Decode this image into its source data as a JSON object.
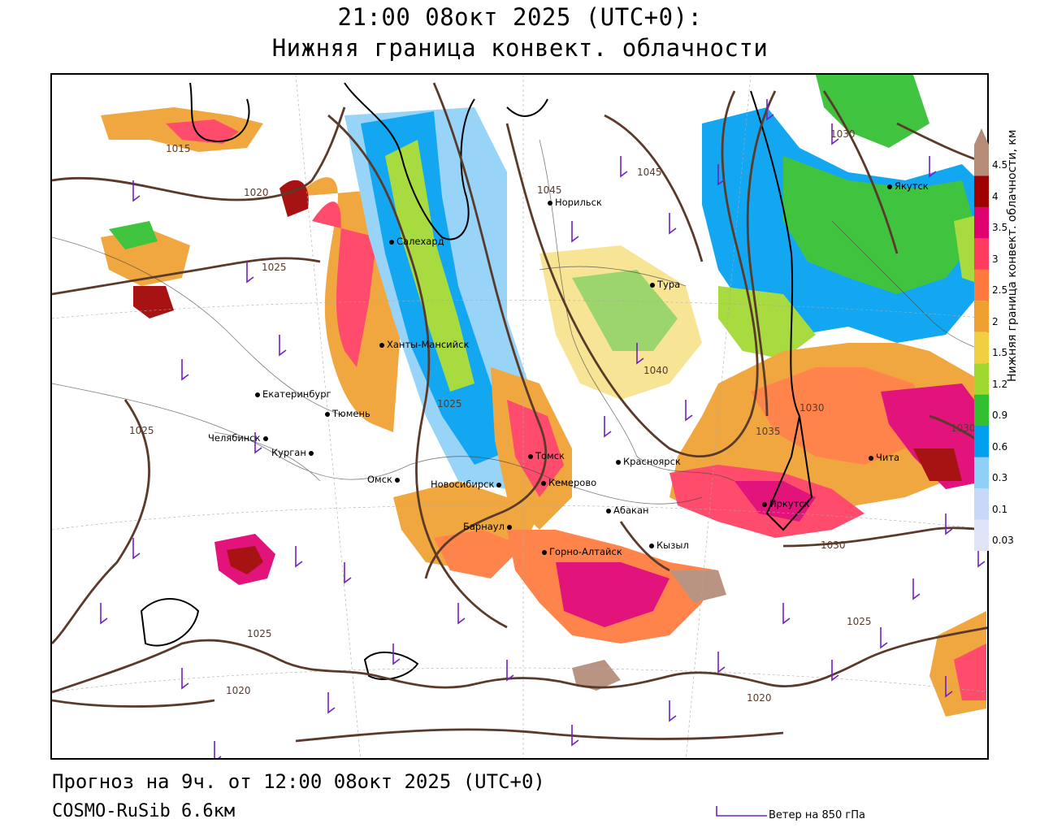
{
  "header": {
    "title_line1": "21:00 08окт 2025 (UTC+0):",
    "title_line2": "Нижняя граница конвект. облачности"
  },
  "footer": {
    "forecast_text": "Прогноз на 9ч. от 12:00 08окт 2025 (UTC+0)",
    "model_text": "COSMO-RuSib 6.6км",
    "wind_legend_label": "Ветер на 850 гПа"
  },
  "colorbar": {
    "title": "Нижняя граница конвект. облачности, км",
    "levels": [
      {
        "label": "4.5",
        "color": "#b48c78"
      },
      {
        "label": "4",
        "color": "#a00000"
      },
      {
        "label": "3.5",
        "color": "#e00070"
      },
      {
        "label": "3",
        "color": "#ff3c60"
      },
      {
        "label": "2.5",
        "color": "#ff7a3c"
      },
      {
        "label": "2",
        "color": "#f0a030"
      },
      {
        "label": "1.5",
        "color": "#f0d040"
      },
      {
        "label": "1.2",
        "color": "#a0d830"
      },
      {
        "label": "0.9",
        "color": "#30c030"
      },
      {
        "label": "0.6",
        "color": "#00a0f0"
      },
      {
        "label": "0.3",
        "color": "#90d0f8"
      },
      {
        "label": "0.1",
        "color": "#c8d8f8"
      },
      {
        "label": "0.03",
        "color": "#e0e4f8"
      }
    ]
  },
  "cities": [
    {
      "name": "Норильск"
    },
    {
      "name": "Якутск"
    },
    {
      "name": "Салехард"
    },
    {
      "name": "Тура"
    },
    {
      "name": "Ханты-Мансийск"
    },
    {
      "name": "Екатеринбург"
    },
    {
      "name": "Тюмень"
    },
    {
      "name": "Челябинск"
    },
    {
      "name": "Курган"
    },
    {
      "name": "Омск"
    },
    {
      "name": "Томск"
    },
    {
      "name": "Новосибирск"
    },
    {
      "name": "Кемерово"
    },
    {
      "name": "Красноярск"
    },
    {
      "name": "Абакан"
    },
    {
      "name": "Барнаул"
    },
    {
      "name": "Горно-Алтайск"
    },
    {
      "name": "Кызыл"
    },
    {
      "name": "Иркутск"
    },
    {
      "name": "Чита"
    }
  ],
  "isobars": [
    "1045",
    "1045",
    "1030",
    "1020",
    "1025",
    "1040",
    "1035",
    "1030",
    "1025",
    "1025",
    "1030",
    "1030",
    "1025",
    "1020",
    "1025",
    "1020",
    "1015"
  ]
}
